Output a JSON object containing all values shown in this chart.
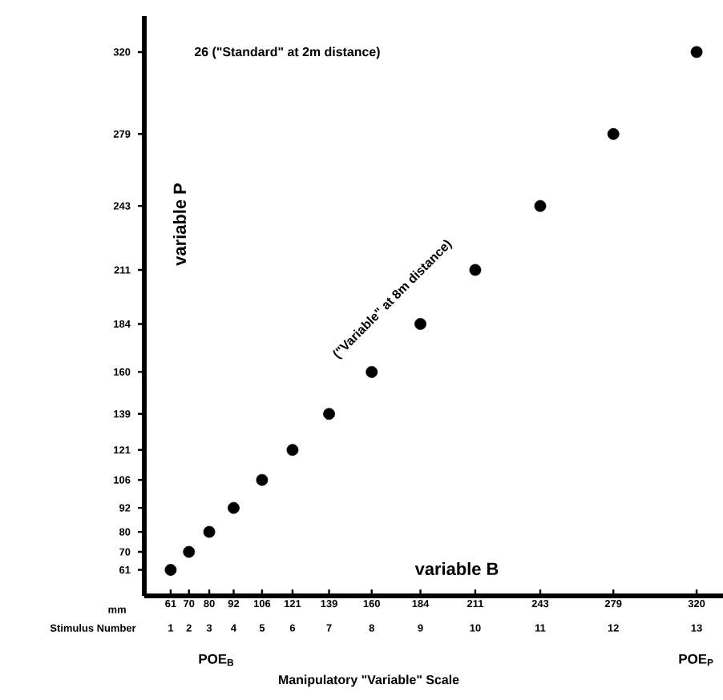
{
  "chart_data": {
    "type": "scatter",
    "x": [
      61,
      70,
      80,
      92,
      106,
      121,
      139,
      160,
      184,
      211,
      243,
      279,
      320
    ],
    "values": [
      61,
      70,
      80,
      92,
      106,
      121,
      139,
      160,
      184,
      211,
      243,
      279,
      320
    ],
    "color": "#000000",
    "marker": "circle",
    "xlim": [
      48,
      333
    ],
    "ylim": [
      48,
      338
    ],
    "xticks": [
      61,
      70,
      80,
      92,
      106,
      121,
      139,
      160,
      184,
      211,
      243,
      279,
      320
    ],
    "yticks": [
      61,
      70,
      80,
      92,
      106,
      121,
      139,
      160,
      184,
      211,
      243,
      279,
      320
    ],
    "annotations": [
      "variable P",
      "variable B",
      "26 (\"Standard\" at 2m distance)",
      "(\"Variable\" at 8m distance)",
      "mm",
      "Stimulus Number",
      "POE$_{B}$",
      "POE$_{P}$",
      "Manipulatory \"Variable\" Scale",
      "1",
      "2",
      "3",
      "4",
      "5",
      "6",
      "7",
      "8",
      "9",
      "10",
      "11",
      "12",
      "13"
    ]
  }
}
